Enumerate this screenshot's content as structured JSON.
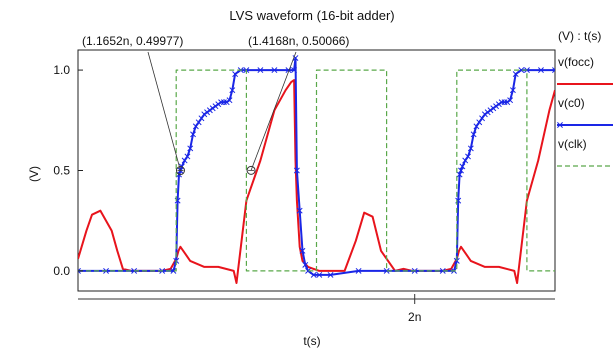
{
  "chart_data": {
    "type": "line",
    "title": "LVS waveform (16-bit adder)",
    "xlabel": "t(s)",
    "ylabel": "(V)",
    "legend_title": "(V) : t(s)",
    "legend_position": "right",
    "grid": false,
    "xlim": [
      0.8,
      2.5
    ],
    "ylim": [
      -0.1,
      1.1
    ],
    "x_unit": "n",
    "x_ticks": [
      {
        "value": 2.0,
        "label": "2n"
      }
    ],
    "y_ticks": [
      {
        "value": 0.0,
        "label": "0.0"
      },
      {
        "value": 0.5,
        "label": "0.5"
      },
      {
        "value": 1.0,
        "label": "1.0"
      }
    ],
    "annotations": [
      {
        "x": 1.1652,
        "y": 0.49977,
        "label": "(1.1652n, 0.49977)"
      },
      {
        "x": 1.4168,
        "y": 0.50066,
        "label": "(1.4168n, 0.50066)"
      }
    ],
    "series": [
      {
        "name": "v(focc)",
        "color": "#e8141c",
        "x": [
          0.8,
          0.83,
          0.85,
          0.88,
          0.92,
          0.94,
          0.96,
          0.99,
          1.03,
          1.1,
          1.13,
          1.15,
          1.158,
          1.165,
          1.18,
          1.2,
          1.25,
          1.3,
          1.355,
          1.365,
          1.4,
          1.45,
          1.5,
          1.54,
          1.56,
          1.57,
          1.575,
          1.58,
          1.59,
          1.6,
          1.62,
          1.66,
          1.7,
          1.75,
          1.79,
          1.82,
          1.85,
          1.88,
          1.93,
          1.96,
          1.99,
          2.03,
          2.1,
          2.13,
          2.15,
          2.158,
          2.165,
          2.18,
          2.2,
          2.25,
          2.3,
          2.355,
          2.365,
          2.4,
          2.44,
          2.48,
          2.5
        ],
        "y": [
          0.06,
          0.2,
          0.28,
          0.3,
          0.2,
          0.1,
          0.01,
          0.0,
          0.0,
          0.0,
          0.01,
          0.06,
          0.1,
          0.12,
          0.09,
          0.05,
          0.02,
          0.02,
          0.0,
          -0.06,
          0.35,
          0.55,
          0.8,
          0.9,
          0.94,
          0.95,
          0.55,
          0.35,
          0.12,
          0.05,
          0.02,
          0.0,
          0.0,
          0.0,
          0.15,
          0.29,
          0.27,
          0.1,
          0.0,
          0.01,
          0.0,
          0.0,
          0.0,
          0.01,
          0.06,
          0.1,
          0.12,
          0.09,
          0.05,
          0.02,
          0.02,
          0.0,
          -0.06,
          0.35,
          0.55,
          0.8,
          0.9
        ]
      },
      {
        "name": "v(c0)",
        "color": "#1a26e6",
        "marker": "x",
        "x": [
          0.8,
          0.9,
          1.0,
          1.1,
          1.14,
          1.15,
          1.155,
          1.16,
          1.165,
          1.17,
          1.18,
          1.19,
          1.2,
          1.21,
          1.22,
          1.23,
          1.24,
          1.25,
          1.26,
          1.27,
          1.28,
          1.29,
          1.3,
          1.31,
          1.32,
          1.33,
          1.34,
          1.35,
          1.36,
          1.38,
          1.4,
          1.45,
          1.5,
          1.55,
          1.57,
          1.575,
          1.58,
          1.59,
          1.6,
          1.61,
          1.62,
          1.64,
          1.66,
          1.7,
          1.8,
          1.9,
          2.0,
          2.1,
          2.14,
          2.15,
          2.155,
          2.16,
          2.165,
          2.17,
          2.18,
          2.19,
          2.2,
          2.21,
          2.22,
          2.23,
          2.24,
          2.25,
          2.26,
          2.27,
          2.28,
          2.29,
          2.3,
          2.31,
          2.32,
          2.33,
          2.34,
          2.35,
          2.36,
          2.38,
          2.4,
          2.45,
          2.5
        ],
        "y": [
          0.0,
          0.0,
          0.0,
          0.0,
          0.0,
          0.05,
          0.35,
          0.48,
          0.5,
          0.52,
          0.55,
          0.57,
          0.61,
          0.68,
          0.72,
          0.74,
          0.76,
          0.78,
          0.79,
          0.8,
          0.81,
          0.82,
          0.83,
          0.84,
          0.84,
          0.84,
          0.85,
          0.9,
          0.98,
          1.0,
          1.0,
          1.0,
          1.0,
          1.0,
          1.0,
          1.06,
          0.5,
          0.3,
          0.1,
          0.03,
          0.0,
          -0.02,
          -0.02,
          -0.02,
          0.0,
          0.0,
          0.0,
          0.0,
          0.0,
          0.05,
          0.35,
          0.48,
          0.5,
          0.52,
          0.55,
          0.57,
          0.61,
          0.68,
          0.72,
          0.74,
          0.76,
          0.78,
          0.79,
          0.8,
          0.81,
          0.82,
          0.83,
          0.84,
          0.84,
          0.84,
          0.85,
          0.9,
          0.98,
          1.0,
          1.0,
          1.0,
          1.0
        ]
      },
      {
        "name": "v(clk)",
        "color": "#5aa84a",
        "dash": "dashed",
        "x": [
          0.8,
          1.15,
          1.15,
          1.4,
          1.4,
          1.65,
          1.65,
          1.9,
          1.9,
          2.15,
          2.15,
          2.4,
          2.4,
          2.5
        ],
        "y": [
          0,
          0,
          1,
          1,
          0,
          0,
          1,
          1,
          0,
          0,
          1,
          1,
          0,
          0
        ]
      }
    ]
  }
}
